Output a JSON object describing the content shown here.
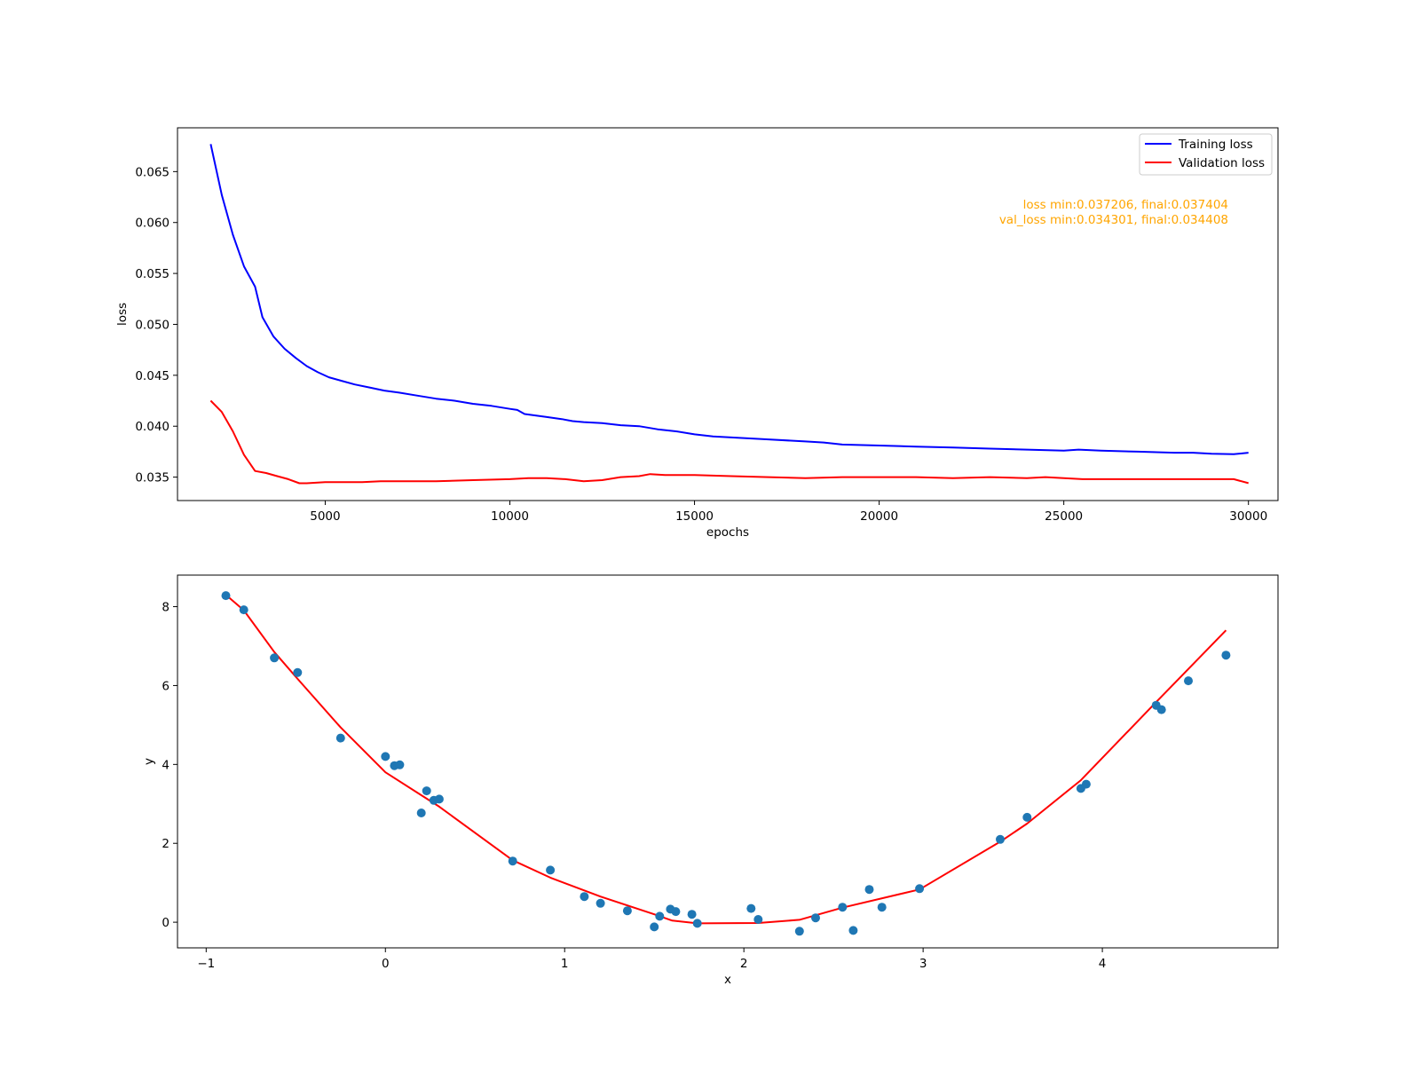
{
  "colors": {
    "training": "#0000ff",
    "validation": "#ff0000",
    "points": "#1f77b4",
    "fit": "#ff0000",
    "annotation": "#ffa500"
  },
  "chart_data": [
    {
      "type": "line",
      "title": "",
      "xlabel": "epochs",
      "ylabel": "loss",
      "xlim": [
        1000,
        30800
      ],
      "ylim": [
        0.0327,
        0.0693
      ],
      "xticks": [
        5000,
        10000,
        15000,
        20000,
        25000,
        30000
      ],
      "yticks": [
        0.035,
        0.04,
        0.045,
        0.05,
        0.055,
        0.06,
        0.065
      ],
      "xtick_labels": [
        "5000",
        "10000",
        "15000",
        "20000",
        "25000",
        "30000"
      ],
      "ytick_labels": [
        "0.035",
        "0.040",
        "0.045",
        "0.050",
        "0.055",
        "0.060",
        "0.065"
      ],
      "grid": false,
      "legend_position": "top-right",
      "annotation_lines": [
        "loss min:0.037206, final:0.037404",
        "val_loss min:0.034301, final:0.034408"
      ],
      "series": [
        {
          "name": "Training loss",
          "color": "#0000ff",
          "x": [
            1900,
            2200,
            2500,
            2800,
            3100,
            3300,
            3600,
            3900,
            4200,
            4500,
            4800,
            5100,
            5400,
            5800,
            6200,
            6600,
            7000,
            7500,
            8000,
            8500,
            9000,
            9500,
            10000,
            10200,
            10400,
            11000,
            11400,
            11700,
            12000,
            12500,
            13000,
            13500,
            14000,
            14500,
            15000,
            15500,
            16000,
            17000,
            18000,
            18500,
            19000,
            20000,
            21000,
            22000,
            23000,
            24000,
            25000,
            25400,
            26000,
            27000,
            28000,
            28500,
            29000,
            29600,
            30000
          ],
          "y": [
            0.0677,
            0.0627,
            0.0588,
            0.0557,
            0.0537,
            0.0507,
            0.0488,
            0.0476,
            0.0467,
            0.0459,
            0.0453,
            0.0448,
            0.0445,
            0.0441,
            0.0438,
            0.0435,
            0.0433,
            0.043,
            0.0427,
            0.0425,
            0.0422,
            0.042,
            0.0417,
            0.0416,
            0.0412,
            0.0409,
            0.0407,
            0.0405,
            0.0404,
            0.0403,
            0.0401,
            0.04,
            0.0397,
            0.0395,
            0.0392,
            0.039,
            0.0389,
            0.0387,
            0.0385,
            0.0384,
            0.0382,
            0.0381,
            0.038,
            0.0379,
            0.0378,
            0.0377,
            0.0376,
            0.0377,
            0.0376,
            0.0375,
            0.0374,
            0.0374,
            0.0373,
            0.03725,
            0.0374
          ]
        },
        {
          "name": "Validation loss",
          "color": "#ff0000",
          "x": [
            1900,
            2200,
            2500,
            2800,
            3100,
            3400,
            3700,
            4000,
            4300,
            4500,
            5000,
            5500,
            6000,
            6500,
            7000,
            8000,
            9000,
            10000,
            10500,
            11000,
            11500,
            12000,
            12500,
            13000,
            13500,
            13800,
            14200,
            14500,
            15000,
            16000,
            17000,
            18000,
            19000,
            20000,
            21000,
            22000,
            23000,
            24000,
            24500,
            25000,
            25500,
            26000,
            27000,
            28000,
            29000,
            29600,
            30000
          ],
          "y": [
            0.0425,
            0.0414,
            0.0395,
            0.0372,
            0.0356,
            0.0354,
            0.0351,
            0.0348,
            0.0344,
            0.0344,
            0.0345,
            0.0345,
            0.0345,
            0.0346,
            0.0346,
            0.0346,
            0.0347,
            0.0348,
            0.0349,
            0.0349,
            0.0348,
            0.0346,
            0.0347,
            0.035,
            0.0351,
            0.0353,
            0.0352,
            0.0352,
            0.0352,
            0.0351,
            0.035,
            0.0349,
            0.035,
            0.035,
            0.035,
            0.0349,
            0.035,
            0.0349,
            0.035,
            0.0349,
            0.0348,
            0.0348,
            0.0348,
            0.0348,
            0.0348,
            0.0348,
            0.03441
          ]
        }
      ]
    },
    {
      "type": "scatter",
      "title": "",
      "xlabel": "x",
      "ylabel": "y",
      "xlim": [
        -1.16,
        4.98
      ],
      "ylim": [
        -0.65,
        8.8
      ],
      "xticks": [
        -1,
        0,
        1,
        2,
        3,
        4
      ],
      "yticks": [
        0,
        2,
        4,
        6,
        8
      ],
      "xtick_labels": [
        "−1",
        "0",
        "1",
        "2",
        "3",
        "4"
      ],
      "ytick_labels": [
        "0",
        "2",
        "4",
        "6",
        "8"
      ],
      "grid": false,
      "series": [
        {
          "kind": "scatter",
          "color": "#1f77b4",
          "x": [
            -0.89,
            -0.79,
            -0.62,
            -0.49,
            -0.25,
            0.0,
            0.05,
            0.08,
            0.2,
            0.23,
            0.27,
            0.3,
            0.71,
            0.92,
            1.11,
            1.2,
            1.35,
            1.5,
            1.53,
            1.59,
            1.62,
            1.71,
            1.74,
            2.04,
            2.08,
            2.31,
            2.4,
            2.55,
            2.61,
            2.7,
            2.77,
            2.98,
            3.43,
            3.58,
            3.88,
            3.91,
            4.3,
            4.33,
            4.48,
            4.69
          ],
          "y": [
            8.28,
            7.92,
            6.7,
            6.33,
            4.67,
            4.2,
            3.97,
            3.99,
            2.77,
            3.33,
            3.09,
            3.12,
            1.55,
            1.32,
            0.65,
            0.48,
            0.29,
            -0.12,
            0.15,
            0.33,
            0.27,
            0.2,
            -0.03,
            0.35,
            0.07,
            -0.23,
            0.11,
            0.38,
            -0.21,
            0.83,
            0.38,
            0.85,
            2.1,
            2.66,
            3.39,
            3.5,
            5.5,
            5.39,
            6.12,
            6.77
          ]
        },
        {
          "kind": "line",
          "color": "#ff0000",
          "x": [
            -0.89,
            -0.79,
            -0.62,
            -0.49,
            -0.25,
            0.0,
            0.2,
            0.3,
            0.71,
            0.92,
            1.2,
            1.5,
            1.6,
            1.74,
            2.08,
            2.31,
            2.55,
            2.98,
            3.43,
            3.58,
            3.88,
            4.3,
            4.69
          ],
          "y": [
            8.3,
            7.91,
            6.85,
            6.17,
            4.94,
            3.8,
            3.22,
            2.93,
            1.57,
            1.13,
            0.65,
            0.2,
            0.04,
            -0.03,
            -0.02,
            0.06,
            0.37,
            0.83,
            2.04,
            2.5,
            3.6,
            5.58,
            7.4
          ]
        }
      ]
    }
  ]
}
